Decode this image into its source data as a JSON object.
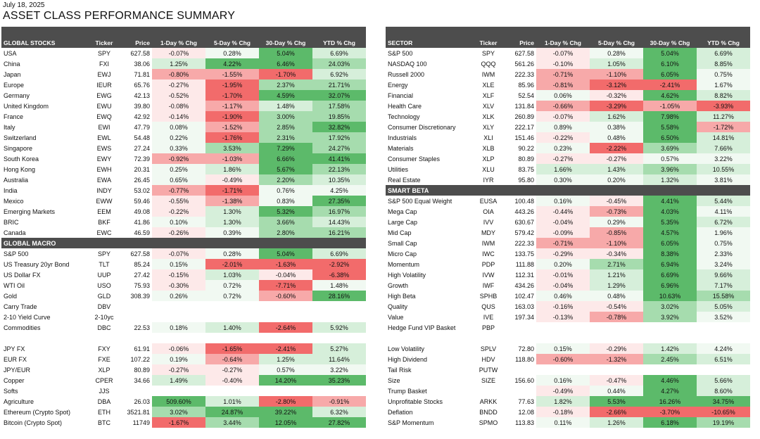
{
  "date": "July 18, 2025",
  "title": "ASSET CLASS PERFORMANCE SUMMARY",
  "colors": {
    "header_bg": "#4d4d4d",
    "header_text": "#ffffff",
    "neg_strong": "#f26b6b",
    "neg_mid": "#f7a9a9",
    "neg_light": "#fde1e1",
    "pos_strong": "#5cba6a",
    "pos_mid": "#a6dcae",
    "pos_light": "#e3f4e5"
  },
  "left_panel": {
    "columns": [
      "GLOBAL STOCKS",
      "Ticker",
      "Price",
      "1-Day % Chg",
      "5-Day % Chg",
      "30-Day % Chg",
      "YTD % Chg"
    ],
    "sections": [
      {
        "title": "",
        "rows": [
          [
            "USA",
            "SPY",
            "627.58",
            "-0.07%",
            "0.28%",
            "5.04%",
            "6.69%"
          ],
          [
            "China",
            "FXI",
            "38.06",
            "1.25%",
            "4.22%",
            "6.46%",
            "24.03%"
          ],
          [
            "Japan",
            "EWJ",
            "71.81",
            "-0.80%",
            "-1.55%",
            "-1.70%",
            "6.92%"
          ],
          [
            "Europe",
            "IEUR",
            "65.76",
            "-0.27%",
            "-1.95%",
            "2.37%",
            "21.71%"
          ],
          [
            "Germany",
            "EWG",
            "42.13",
            "-0.52%",
            "-1.70%",
            "4.59%",
            "32.07%"
          ],
          [
            "United Kingdom",
            "EWU",
            "39.80",
            "-0.08%",
            "-1.17%",
            "1.48%",
            "17.58%"
          ],
          [
            "France",
            "EWQ",
            "42.92",
            "-0.14%",
            "-1.90%",
            "3.00%",
            "19.85%"
          ],
          [
            "Italy",
            "EWI",
            "47.79",
            "0.08%",
            "-1.52%",
            "2.85%",
            "32.82%"
          ],
          [
            "Switzerland",
            "EWL",
            "54.48",
            "0.22%",
            "-1.76%",
            "2.31%",
            "17.92%"
          ],
          [
            "Singapore",
            "EWS",
            "27.24",
            "0.33%",
            "3.53%",
            "7.29%",
            "24.27%"
          ],
          [
            "South Korea",
            "EWY",
            "72.39",
            "-0.92%",
            "-1.03%",
            "6.66%",
            "41.41%"
          ],
          [
            "Hong Kong",
            "EWH",
            "20.31",
            "0.25%",
            "1.86%",
            "5.67%",
            "22.13%"
          ],
          [
            "Australia",
            "EWA",
            "26.45",
            "0.65%",
            "-0.49%",
            "2.20%",
            "10.35%"
          ],
          [
            "India",
            "INDY",
            "53.02",
            "-0.77%",
            "-1.71%",
            "0.76%",
            "4.25%"
          ],
          [
            "Mexico",
            "EWW",
            "59.46",
            "-0.55%",
            "-1.38%",
            "0.83%",
            "27.35%"
          ],
          [
            "Emerging Markets",
            "EEM",
            "49.08",
            "-0.22%",
            "1.30%",
            "5.32%",
            "16.97%"
          ],
          [
            "BRIC",
            "BKF",
            "41.86",
            "0.10%",
            "1.30%",
            "3.66%",
            "14.43%"
          ],
          [
            "Canada",
            "EWC",
            "46.59",
            "-0.26%",
            "0.39%",
            "2.80%",
            "16.21%"
          ]
        ]
      },
      {
        "title": "GLOBAL MACRO",
        "rows": [
          [
            "S&P 500",
            "SPY",
            "627.58",
            "-0.07%",
            "0.28%",
            "5.04%",
            "6.69%"
          ],
          [
            "US Treasury 20yr Bond",
            "TLT",
            "85.24",
            "0.15%",
            "-2.01%",
            "-1.63%",
            "-2.92%"
          ],
          [
            "US Dollar FX",
            "UUP",
            "27.42",
            "-0.15%",
            "1.03%",
            "-0.04%",
            "-6.38%"
          ],
          [
            "WTI Oil",
            "USO",
            "75.93",
            "-0.30%",
            "0.72%",
            "-7.71%",
            "1.48%"
          ],
          [
            "Gold",
            "GLD",
            "308.39",
            "0.26%",
            "0.72%",
            "-0.60%",
            "28.16%"
          ],
          [
            "Carry Trade",
            "DBV",
            "",
            "",
            "",
            "",
            ""
          ],
          [
            "2-10 Yield Curve",
            "2-10yc",
            "",
            "",
            "",
            "",
            ""
          ],
          [
            "Commodities",
            "DBC",
            "22.53",
            "0.18%",
            "1.40%",
            "-2.64%",
            "5.92%"
          ],
          [
            "",
            "",
            "",
            "",
            "",
            "",
            ""
          ],
          [
            "JPY FX",
            "FXY",
            "61.91",
            "-0.06%",
            "-1.65%",
            "-2.41%",
            "5.27%"
          ],
          [
            "EUR FX",
            "FXE",
            "107.22",
            "0.19%",
            "-0.64%",
            "1.25%",
            "11.64%"
          ],
          [
            "JPY/EUR",
            "XLP",
            "80.89",
            "-0.27%",
            "-0.27%",
            "0.57%",
            "3.22%"
          ],
          [
            "Copper",
            "CPER",
            "34.66",
            "1.49%",
            "-0.40%",
            "14.20%",
            "35.23%"
          ],
          [
            "Softs",
            "JJS",
            "",
            "",
            "",
            "",
            ""
          ],
          [
            "Agriculture",
            "DBA",
            "26.03",
            "509.60%",
            "1.01%",
            "-2.80%",
            "-0.91%"
          ],
          [
            "Ethereum (Crypto Spot)",
            "ETH",
            "3521.81",
            "3.02%",
            "24.87%",
            "39.22%",
            "6.32%"
          ],
          [
            "Bitcoin (Crypto Spot)",
            "BTC",
            "11749",
            "-1.67%",
            "3.44%",
            "12.05%",
            "27.82%"
          ]
        ]
      }
    ]
  },
  "right_panel": {
    "columns": [
      "SECTOR",
      "Ticker",
      "Price",
      "1-Day % Chg",
      "5-Day % Chg",
      "30-Day % Chg",
      "YTD % Chg"
    ],
    "sections": [
      {
        "title": "",
        "rows": [
          [
            "S&P 500",
            "SPY",
            "627.58",
            "-0.07%",
            "0.28%",
            "5.04%",
            "6.69%"
          ],
          [
            "NASDAQ 100",
            "QQQ",
            "561.26",
            "-0.10%",
            "1.05%",
            "6.10%",
            "8.85%"
          ],
          [
            "Russell 2000",
            "IWM",
            "222.33",
            "-0.71%",
            "-1.10%",
            "6.05%",
            "0.75%"
          ],
          [
            "Energy",
            "XLE",
            "85.96",
            "-0.81%",
            "-3.12%",
            "-2.41%",
            "1.67%"
          ],
          [
            "Financial",
            "XLF",
            "52.54",
            "0.06%",
            "-0.32%",
            "4.62%",
            "8.82%"
          ],
          [
            "Health Care",
            "XLV",
            "131.84",
            "-0.66%",
            "-3.29%",
            "-1.05%",
            "-3.93%"
          ],
          [
            "Technology",
            "XLK",
            "260.89",
            "-0.07%",
            "1.62%",
            "7.98%",
            "11.27%"
          ],
          [
            "Consumer Discretionary",
            "XLY",
            "222.17",
            "0.89%",
            "0.38%",
            "5.58%",
            "-1.72%"
          ],
          [
            "Industrials",
            "XLI",
            "151.46",
            "-0.22%",
            "0.48%",
            "6.50%",
            "14.81%"
          ],
          [
            "Materials",
            "XLB",
            "90.22",
            "0.23%",
            "-2.22%",
            "3.69%",
            "7.66%"
          ],
          [
            "Consumer Staples",
            "XLP",
            "80.89",
            "-0.27%",
            "-0.27%",
            "0.57%",
            "3.22%"
          ],
          [
            "Utilities",
            "XLU",
            "83.75",
            "1.66%",
            "1.43%",
            "3.96%",
            "10.55%"
          ],
          [
            "Real Estate",
            "IYR",
            "95.80",
            "0.30%",
            "0.20%",
            "1.32%",
            "3.81%"
          ]
        ]
      },
      {
        "title": "SMART BETA",
        "rows": [
          [
            "S&P 500 Equal Weight",
            "EUSA",
            "100.48",
            "0.16%",
            "-0.45%",
            "4.41%",
            "5.44%"
          ],
          [
            "Mega Cap",
            "OIA",
            "443.26",
            "-0.44%",
            "-0.73%",
            "4.03%",
            "4.11%"
          ],
          [
            "Large Cap",
            "IVV",
            "630.67",
            "-0.04%",
            "0.29%",
            "5.35%",
            "6.72%"
          ],
          [
            "Mid Cap",
            "MDY",
            "579.42",
            "-0.09%",
            "-0.85%",
            "4.57%",
            "1.96%"
          ],
          [
            "Small Cap",
            "IWM",
            "222.33",
            "-0.71%",
            "-1.10%",
            "6.05%",
            "0.75%"
          ],
          [
            "Micro Cap",
            "IWC",
            "133.75",
            "-0.29%",
            "-0.34%",
            "8.38%",
            "2.33%"
          ],
          [
            "Momentum",
            "PDP",
            "111.88",
            "0.20%",
            "2.71%",
            "6.94%",
            "3.24%"
          ],
          [
            "High Volatility",
            "IVW",
            "112.31",
            "-0.01%",
            "1.21%",
            "6.69%",
            "9.66%"
          ],
          [
            "Growth",
            "IWF",
            "434.26",
            "-0.04%",
            "1.29%",
            "6.96%",
            "7.17%"
          ],
          [
            "High Beta",
            "SPHB",
            "102.47",
            "0.46%",
            "0.48%",
            "10.63%",
            "15.58%"
          ],
          [
            "Quality",
            "QUS",
            "163.03",
            "-0.16%",
            "-0.54%",
            "3.02%",
            "5.05%"
          ],
          [
            "Value",
            "IVE",
            "197.34",
            "-0.13%",
            "-0.78%",
            "3.92%",
            "3.52%"
          ],
          [
            "Hedge Fund VIP Basket",
            "PBP",
            "",
            "",
            "",
            "",
            ""
          ],
          [
            "",
            "",
            "",
            "",
            "",
            "",
            ""
          ],
          [
            "Low Volatility",
            "SPLV",
            "72.80",
            "0.15%",
            "-0.29%",
            "1.42%",
            "4.24%"
          ],
          [
            "High Dividend",
            "HDV",
            "118.80",
            "-0.60%",
            "-1.32%",
            "2.45%",
            "6.51%"
          ],
          [
            "Tail Risk",
            "PUTW",
            "",
            "",
            "",
            "",
            ""
          ],
          [
            "Size",
            "SIZE",
            "156.60",
            "0.16%",
            "-0.47%",
            "4.46%",
            "5.66%"
          ],
          [
            "Trump Basket",
            "",
            "",
            "-0.49%",
            "0.44%",
            "4.27%",
            "8.60%"
          ],
          [
            "Unprofitable Stocks",
            "ARKK",
            "77.63",
            "1.82%",
            "5.53%",
            "16.26%",
            "34.75%"
          ],
          [
            "Deflation",
            "BNDD",
            "12.08",
            "-0.18%",
            "-2.66%",
            "-3.70%",
            "-10.65%"
          ],
          [
            "S&P Momentum",
            "SPMO",
            "113.83",
            "0.11%",
            "1.26%",
            "6.18%",
            "19.19%"
          ]
        ]
      }
    ]
  }
}
